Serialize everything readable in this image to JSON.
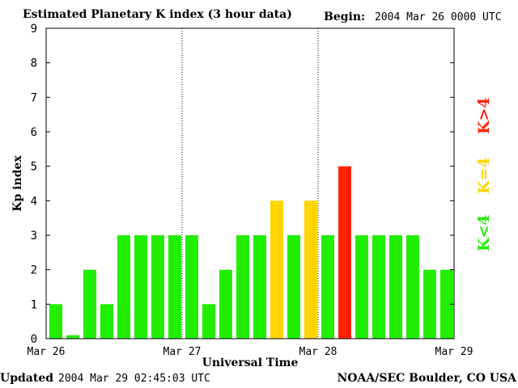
{
  "header": {
    "title": "Estimated Planetary K index (3 hour data)",
    "begin_label": "Begin:",
    "begin_value": "2004 Mar 26 0000 UTC"
  },
  "footer": {
    "updated_label": "Updated",
    "updated_value": "2004 Mar 29 02:45:03 UTC",
    "credit": "NOAA/SEC Boulder, CO USA"
  },
  "legend": {
    "below": "K<4",
    "equal": "K=4",
    "above": "K>4"
  },
  "colors": {
    "below": "#22ee00",
    "equal": "#ffd400",
    "above": "#ff2200"
  },
  "chart_data": {
    "type": "bar",
    "ylabel": "Kp index",
    "xlabel": "Universal Time",
    "ylim": [
      0,
      9
    ],
    "yticks": [
      "0",
      "1",
      "2",
      "3",
      "4",
      "5",
      "6",
      "7",
      "8",
      "9"
    ],
    "xticks": [
      "Mar 26",
      "Mar 27",
      "Mar 28",
      "Mar 29"
    ],
    "values": [
      1,
      0.1,
      2,
      1,
      3,
      3,
      3,
      3,
      3,
      1,
      2,
      3,
      3,
      4,
      3,
      4,
      3,
      5,
      3,
      3,
      3,
      3,
      2,
      2
    ]
  }
}
